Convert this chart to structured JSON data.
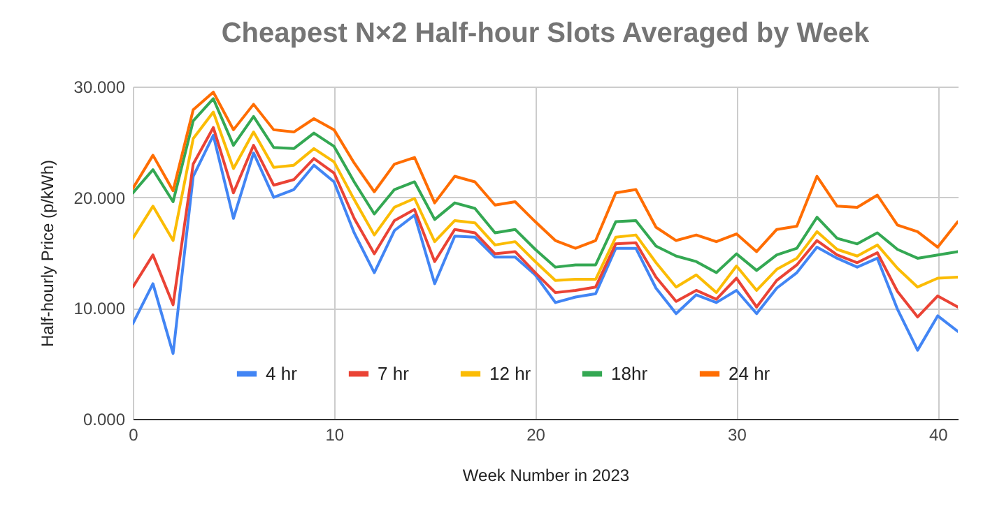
{
  "chart_data": {
    "type": "line",
    "title": "Cheapest N×2 Half-hour Slots Averaged by Week",
    "xlabel": "Week Number in 2023",
    "ylabel": "Half-hourly Price (p/kWh)",
    "x": [
      0,
      1,
      2,
      3,
      4,
      5,
      6,
      7,
      8,
      9,
      10,
      11,
      12,
      13,
      14,
      15,
      16,
      17,
      18,
      19,
      20,
      21,
      22,
      23,
      24,
      25,
      26,
      27,
      28,
      29,
      30,
      31,
      32,
      33,
      34,
      35,
      36,
      37,
      38,
      39,
      40,
      41
    ],
    "series": [
      {
        "name": "4 hr",
        "color": "#4285f4",
        "values": [
          8.6,
          12.2,
          5.9,
          21.9,
          25.6,
          18.1,
          24.0,
          20.0,
          20.7,
          22.9,
          21.4,
          16.8,
          13.2,
          17.0,
          18.4,
          12.2,
          16.5,
          16.4,
          14.6,
          14.6,
          13.0,
          10.5,
          11.0,
          11.3,
          15.4,
          15.4,
          11.8,
          9.5,
          11.2,
          10.5,
          11.6,
          9.5,
          11.8,
          13.2,
          15.5,
          14.5,
          13.7,
          14.5,
          9.9,
          6.2,
          9.3,
          7.9
        ]
      },
      {
        "name": "7 hr",
        "color": "#ea4335",
        "values": [
          11.9,
          14.8,
          10.3,
          23.0,
          26.3,
          20.4,
          24.7,
          21.1,
          21.6,
          23.5,
          22.2,
          18.1,
          14.9,
          17.9,
          18.9,
          14.2,
          17.1,
          16.8,
          14.9,
          15.1,
          13.2,
          11.4,
          11.6,
          11.9,
          15.8,
          15.9,
          12.8,
          10.6,
          11.6,
          10.8,
          12.7,
          10.1,
          12.5,
          13.9,
          16.1,
          14.8,
          14.1,
          15.0,
          11.5,
          9.2,
          11.1,
          10.1
        ]
      },
      {
        "name": "12 hr",
        "color": "#fbbc04",
        "values": [
          16.3,
          19.2,
          16.1,
          25.3,
          27.7,
          22.6,
          25.9,
          22.7,
          22.9,
          24.4,
          23.2,
          19.8,
          16.6,
          19.1,
          19.9,
          16.0,
          17.9,
          17.7,
          15.7,
          16.0,
          14.2,
          12.5,
          12.6,
          12.6,
          16.4,
          16.6,
          14.1,
          11.9,
          13.0,
          11.4,
          13.8,
          11.6,
          13.5,
          14.5,
          16.9,
          15.3,
          14.7,
          15.7,
          13.6,
          11.9,
          12.7,
          12.8
        ]
      },
      {
        "name": "18hr",
        "color": "#34a853",
        "values": [
          20.4,
          22.5,
          19.6,
          26.9,
          28.9,
          24.7,
          27.3,
          24.5,
          24.4,
          25.8,
          24.6,
          21.4,
          18.5,
          20.7,
          21.4,
          18.0,
          19.5,
          19.0,
          16.8,
          17.1,
          15.3,
          13.7,
          13.9,
          13.9,
          17.8,
          17.9,
          15.6,
          14.7,
          14.2,
          13.2,
          14.9,
          13.4,
          14.8,
          15.4,
          18.2,
          16.3,
          15.8,
          16.8,
          15.3,
          14.5,
          14.8,
          15.1
        ]
      },
      {
        "name": "24 hr",
        "color": "#ff6d01",
        "values": [
          20.8,
          23.8,
          20.6,
          27.9,
          29.5,
          26.1,
          28.4,
          26.1,
          25.9,
          27.1,
          26.1,
          23.1,
          20.5,
          23.0,
          23.6,
          19.5,
          21.9,
          21.4,
          19.3,
          19.6,
          17.8,
          16.1,
          15.4,
          16.1,
          20.4,
          20.7,
          17.3,
          16.1,
          16.6,
          16.0,
          16.7,
          15.1,
          17.1,
          17.4,
          21.9,
          19.2,
          19.1,
          20.2,
          17.5,
          16.9,
          15.5,
          17.8
        ]
      }
    ],
    "xlim": [
      0,
      41
    ],
    "xticks": [
      0,
      10,
      20,
      30,
      40
    ],
    "ylim": [
      0,
      30
    ],
    "yticks": [
      {
        "value": 0,
        "label": "0.000"
      },
      {
        "value": 10,
        "label": "10.000"
      },
      {
        "value": 20,
        "label": "20.000"
      },
      {
        "value": 30,
        "label": "30.000"
      }
    ],
    "grid": true,
    "legend": "bottom",
    "marker": "none",
    "line_style": "solid"
  }
}
